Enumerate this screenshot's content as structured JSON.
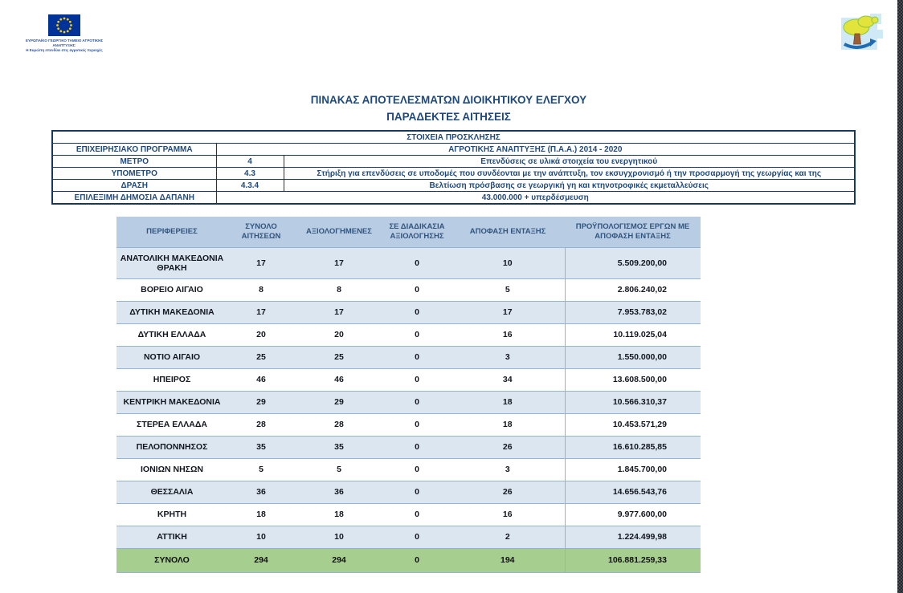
{
  "eu_logo": {
    "caption_line1": "ΕΥΡΩΠΑΪΚΟ ΓΕΩΡΓΙΚΟ ΤΑΜΕΙΟ ΑΓΡΟΤΙΚΗΣ ΑΝΑΠΤΥΞΗΣ:",
    "caption_line2": "Η Ευρώπη επενδύει στις αγροτικές περιοχές"
  },
  "title": {
    "line1": "ΠΙΝΑΚΑΣ ΑΠΟΤΕΛΕΣΜΑΤΩΝ ΔΙΟΙΚΗΤΙΚΟΥ ΕΛΕΓΧΟΥ",
    "line2": "ΠΑΡΑΔΕΚΤΕΣ ΑΙΤΗΣΕΙΣ"
  },
  "call_info": {
    "header": "ΣΤΟΙΧΕΙΑ ΠΡΟΣΚΛΗΣΗΣ",
    "rows": [
      {
        "label": "ΕΠΙΧΕΙΡΗΣΙΑΚΟ ΠΡΟΓΡΑΜΜΑ",
        "code": null,
        "value": "ΑΓΡΟΤΙΚΗΣ ΑΝΑΠΤΥΞΗΣ (Π.Α.Α.) 2014 - 2020"
      },
      {
        "label": "ΜΕΤΡΟ",
        "code": "4",
        "value": "Επενδύσεις σε υλικά στοιχεία του ενεργητικού"
      },
      {
        "label": "ΥΠΟΜΕΤΡΟ",
        "code": "4.3",
        "value": "Στήριξη για επενδύσεις σε υποδομές που συνδέονται με την ανάπτυξη, τον εκσυγχρονισμό ή την προσαρμογή της γεωργίας και της"
      },
      {
        "label": "ΔΡΑΣΗ",
        "code": "4.3.4",
        "value": "Βελτίωση πρόσβασης σε γεωργική γη και κτηνοτροφικές εκμεταλλεύσεις"
      },
      {
        "label": "ΕΠΙΛΕΞΙΜΗ ΔΗΜΟΣΙΑ ΔΑΠΑΝΗ",
        "code": null,
        "value": "43.000.000 + υπερδέσμευση"
      }
    ]
  },
  "results_table": {
    "columns": [
      "ΠΕΡΙΦΕΡΕΙΕΣ",
      "ΣΥΝΟΛΟ ΑΙΤΗΣΕΩΝ",
      "ΑΞΙΟΛΟΓΗΜΕΝΕΣ",
      "ΣΕ ΔΙΑΔΙΚΑΣΙΑ ΑΞΙΟΛΟΓΗΣΗΣ",
      "ΑΠΟΦΑΣΗ ΕΝΤΑΞΗΣ",
      "ΠΡΟΫΠΟΛΟΓΙΣΜΟΣ ΕΡΓΩΝ ΜΕ ΑΠΟΦΑΣΗ ΕΝΤΑΞΗΣ"
    ],
    "rows": [
      [
        "ΑΝΑΤΟΛΙΚΗ ΜΑΚΕΔΟΝΙΑ ΘΡΑΚΗ",
        "17",
        "17",
        "0",
        "10",
        "5.509.200,00"
      ],
      [
        "ΒΟΡΕΙΟ ΑΙΓΑΙΟ",
        "8",
        "8",
        "0",
        "5",
        "2.806.240,02"
      ],
      [
        "ΔΥΤΙΚΗ ΜΑΚΕΔΟΝΙΑ",
        "17",
        "17",
        "0",
        "17",
        "7.953.783,02"
      ],
      [
        "ΔΥΤΙΚΗ ΕΛΛΑΔΑ",
        "20",
        "20",
        "0",
        "16",
        "10.119.025,04"
      ],
      [
        "ΝΟΤΙΟ ΑΙΓΑΙΟ",
        "25",
        "25",
        "0",
        "3",
        "1.550.000,00"
      ],
      [
        "ΗΠΕΙΡΟΣ",
        "46",
        "46",
        "0",
        "34",
        "13.608.500,00"
      ],
      [
        "ΚΕΝΤΡΙΚΗ ΜΑΚΕΔΟΝΙΑ",
        "29",
        "29",
        "0",
        "18",
        "10.566.310,37"
      ],
      [
        "ΣΤΕΡΕΑ ΕΛΛΑΔΑ",
        "28",
        "28",
        "0",
        "18",
        "10.453.571,29"
      ],
      [
        "ΠΕΛΟΠΟΝΝΗΣΟΣ",
        "35",
        "35",
        "0",
        "26",
        "16.610.285,85"
      ],
      [
        "ΙΟΝΙΩΝ ΝΗΣΩΝ",
        "5",
        "5",
        "0",
        "3",
        "1.845.700,00"
      ],
      [
        "ΘΕΣΣΑΛΙΑ",
        "36",
        "36",
        "0",
        "26",
        "14.656.543,76"
      ],
      [
        "ΚΡΗΤΗ",
        "18",
        "18",
        "0",
        "16",
        "9.977.600,00"
      ],
      [
        "ΑΤΤΙΚΗ",
        "10",
        "10",
        "0",
        "2",
        "1.224.499,98"
      ]
    ],
    "total_row": [
      "ΣΥΝΟΛΟ",
      "294",
      "294",
      "0",
      "194",
      "106.881.259,33"
    ]
  },
  "colors": {
    "title_text": "#1f497d",
    "info_border": "#17375d",
    "table_header_bg": "#b8cce4",
    "table_stripe_bg": "#dce6f1",
    "table_line": "#95b3d7",
    "total_row_bg": "#a6ce8e",
    "eu_flag_blue": "#003399",
    "eu_star_yellow": "#ffcc00"
  }
}
